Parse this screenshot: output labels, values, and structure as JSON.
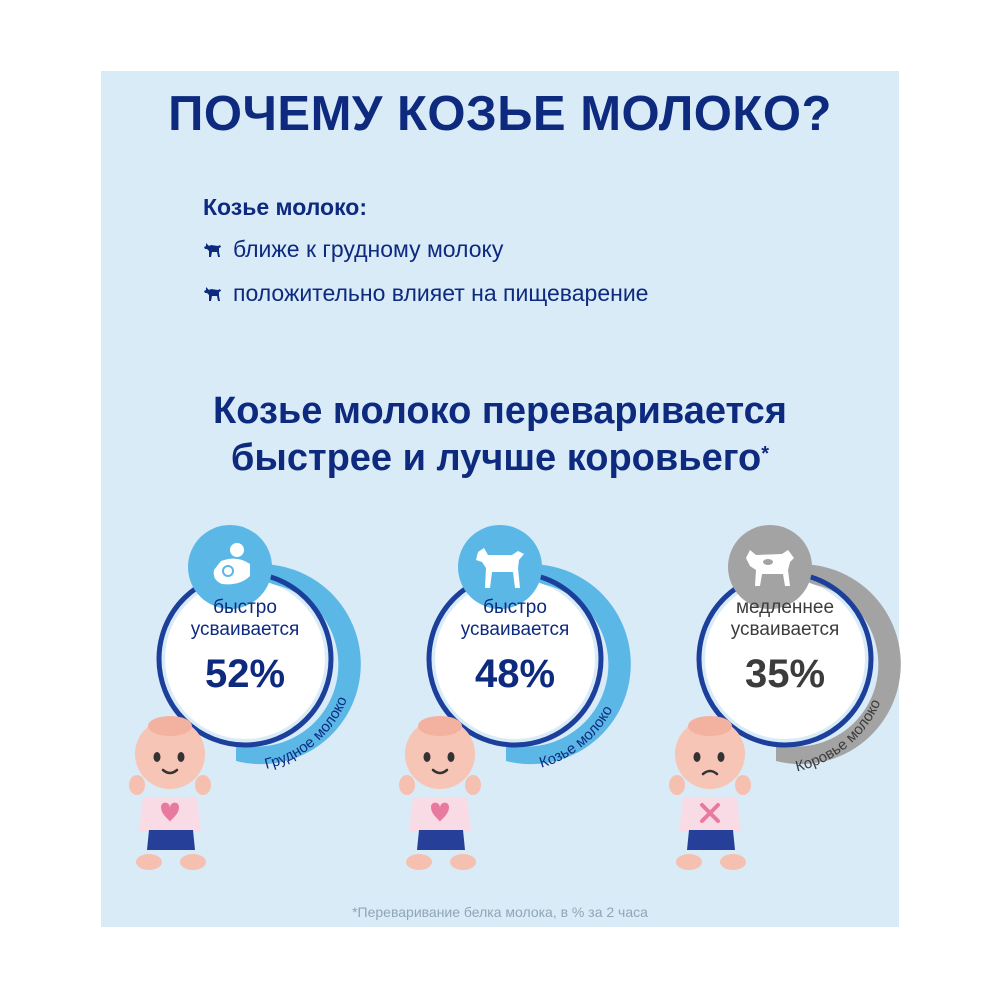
{
  "title": "ПОЧЕМУ КОЗЬЕ МОЛОКО?",
  "benefits": {
    "heading": "Козье молоко:",
    "items": [
      "ближе к грудному молоку",
      "положительно влияет на пищеварение"
    ],
    "bullet_icon": "goat-icon"
  },
  "headline": {
    "line1": "Козье молоко переваривается",
    "line2": "быстрее и лучше коровьего",
    "mark": "*"
  },
  "cards": [
    {
      "caption_line1": "быстро",
      "caption_line2": "усваивается",
      "percent": "52%",
      "value": 52,
      "label": "Грудное молоко",
      "icon": "breastfeeding-icon",
      "accent": "#5bb8e6",
      "baby_mood": "happy"
    },
    {
      "caption_line1": "быстро",
      "caption_line2": "усваивается",
      "percent": "48%",
      "value": 48,
      "label": "Козье молоко",
      "icon": "goat-icon",
      "accent": "#5bb8e6",
      "baby_mood": "happy"
    },
    {
      "caption_line1": "медленнее",
      "caption_line2": "усваивается",
      "percent": "35%",
      "value": 35,
      "label": "Коровье молоко",
      "icon": "cow-icon",
      "accent": "#a3a3a3",
      "baby_mood": "sad"
    }
  ],
  "colors": {
    "navy": "#0d2a7e",
    "panel": "#d9ebf7",
    "accent_blue": "#5bb8e6",
    "accent_grey": "#a3a3a3"
  },
  "footnote": "*Переваривание белка молока, в % за 2 часа"
}
